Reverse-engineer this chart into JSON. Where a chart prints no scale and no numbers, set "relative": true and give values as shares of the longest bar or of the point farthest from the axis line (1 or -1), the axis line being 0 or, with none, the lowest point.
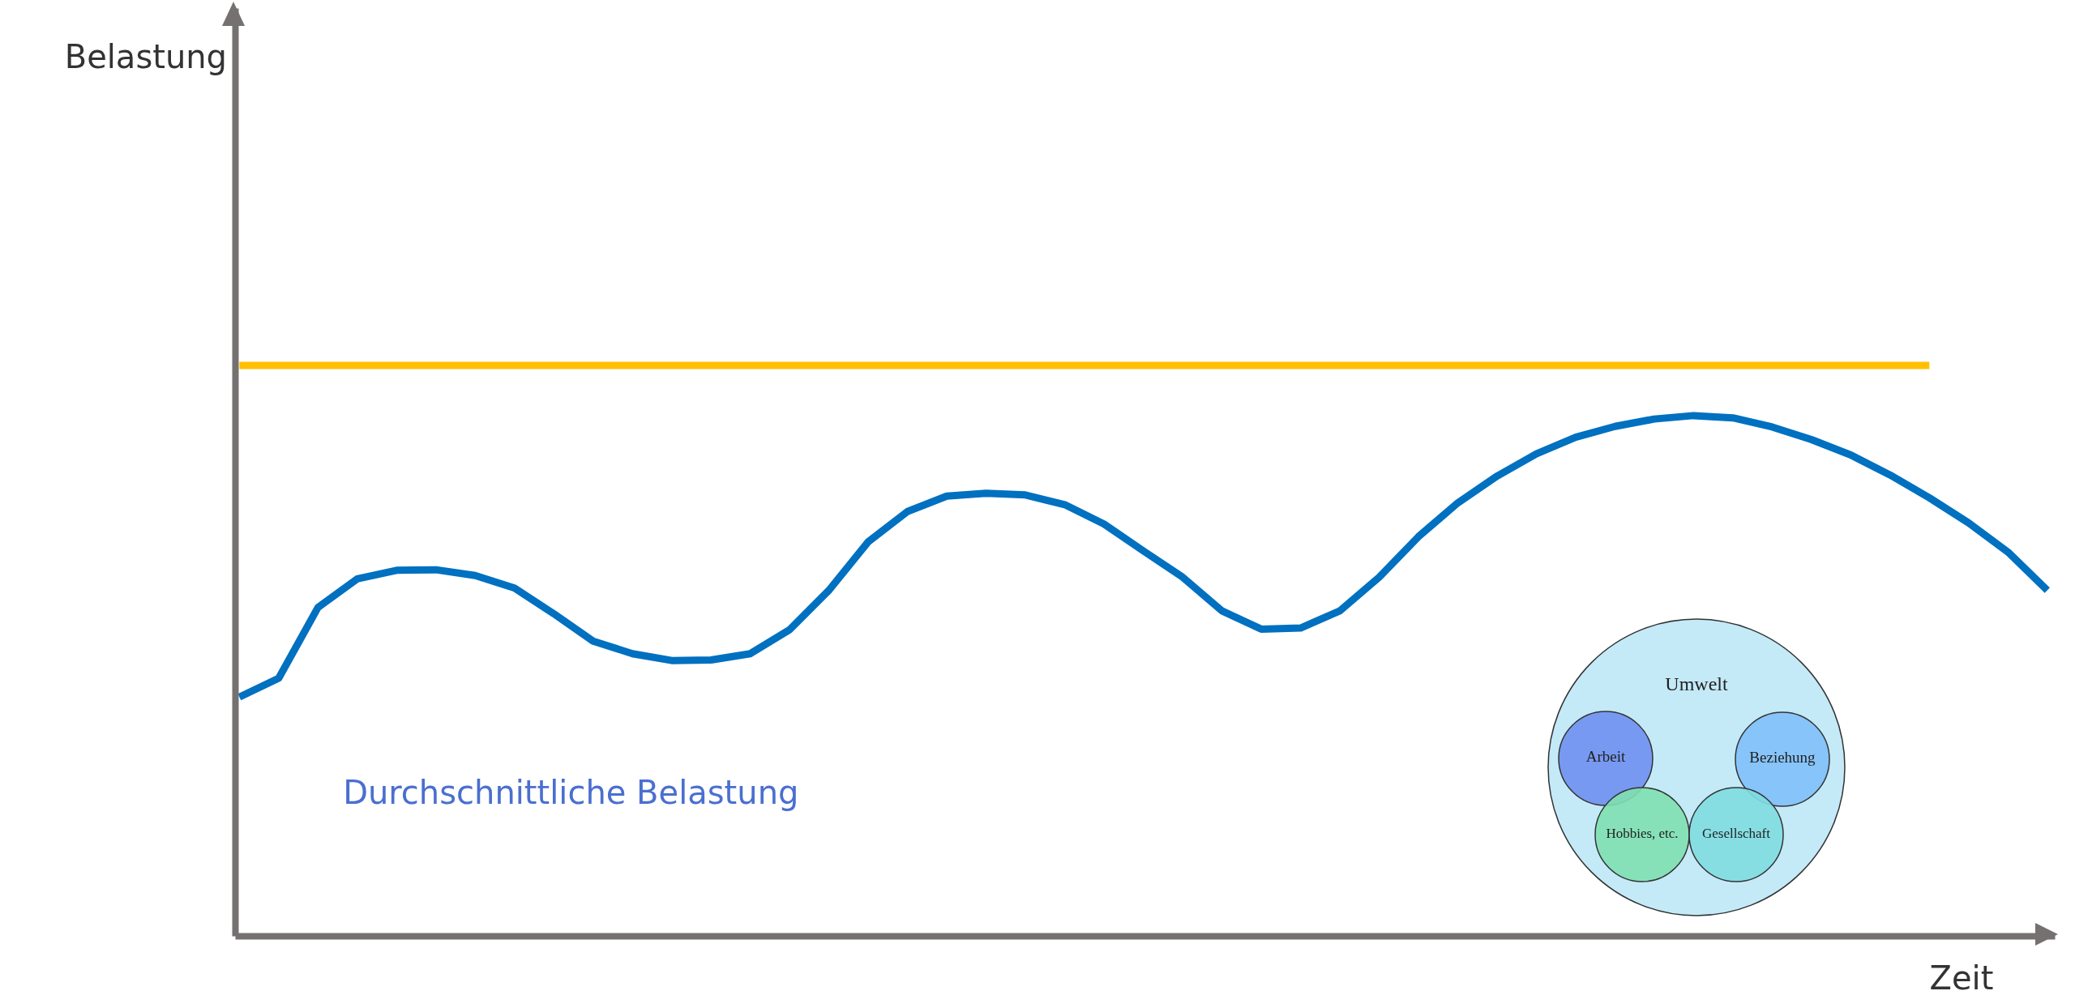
{
  "chart_data": {
    "type": "line",
    "relative": true,
    "xlabel": "Zeit",
    "marker": "none",
    "line_style": "solid",
    "categories": [
      null,
      null,
      null,
      null,
      null,
      null,
      null,
      null,
      null,
      null,
      null,
      null,
      null,
      null,
      null,
      null,
      null,
      null,
      null,
      null,
      null,
      null,
      null,
      null,
      null,
      null,
      null,
      null,
      null,
      null,
      null,
      null,
      null,
      null,
      null,
      null,
      null,
      null,
      null,
      null,
      null,
      null,
      null,
      null,
      null,
      null,
      null
    ],
    "series": [
      {
        "color": "#ffc000",
        "values": [
          1,
          1,
          1,
          1,
          1,
          1,
          1,
          1,
          1,
          1,
          1,
          1,
          1,
          1,
          1,
          1,
          1,
          1,
          1,
          1,
          1,
          1,
          1,
          1,
          1,
          1,
          1,
          1,
          1,
          1,
          1,
          1,
          1,
          1,
          1,
          1,
          1,
          1,
          1,
          1,
          1,
          1,
          1,
          1,
          null,
          null,
          null
        ]
      },
      {
        "color": "#0070c0",
        "values": [
          0.419,
          0.452,
          0.576,
          0.626,
          0.641,
          0.642,
          0.632,
          0.61,
          0.565,
          0.517,
          0.495,
          0.483,
          0.484,
          0.495,
          0.537,
          0.606,
          0.691,
          0.744,
          0.771,
          0.776,
          0.773,
          0.756,
          0.722,
          0.675,
          0.629,
          0.57,
          0.538,
          0.54,
          0.57,
          0.629,
          0.7,
          0.759,
          0.806,
          0.845,
          0.874,
          0.893,
          0.906,
          0.912,
          0.908,
          0.892,
          0.87,
          0.843,
          0.808,
          0.768,
          0.724,
          0.673,
          0.606
        ]
      }
    ],
    "annotations": [
      "Durchschnittliche Belastung",
      "Umwelt",
      "Arbeit",
      "Beziehung",
      "Hobbies, etc.",
      "Gesellschaft",
      "Belastung"
    ]
  }
}
